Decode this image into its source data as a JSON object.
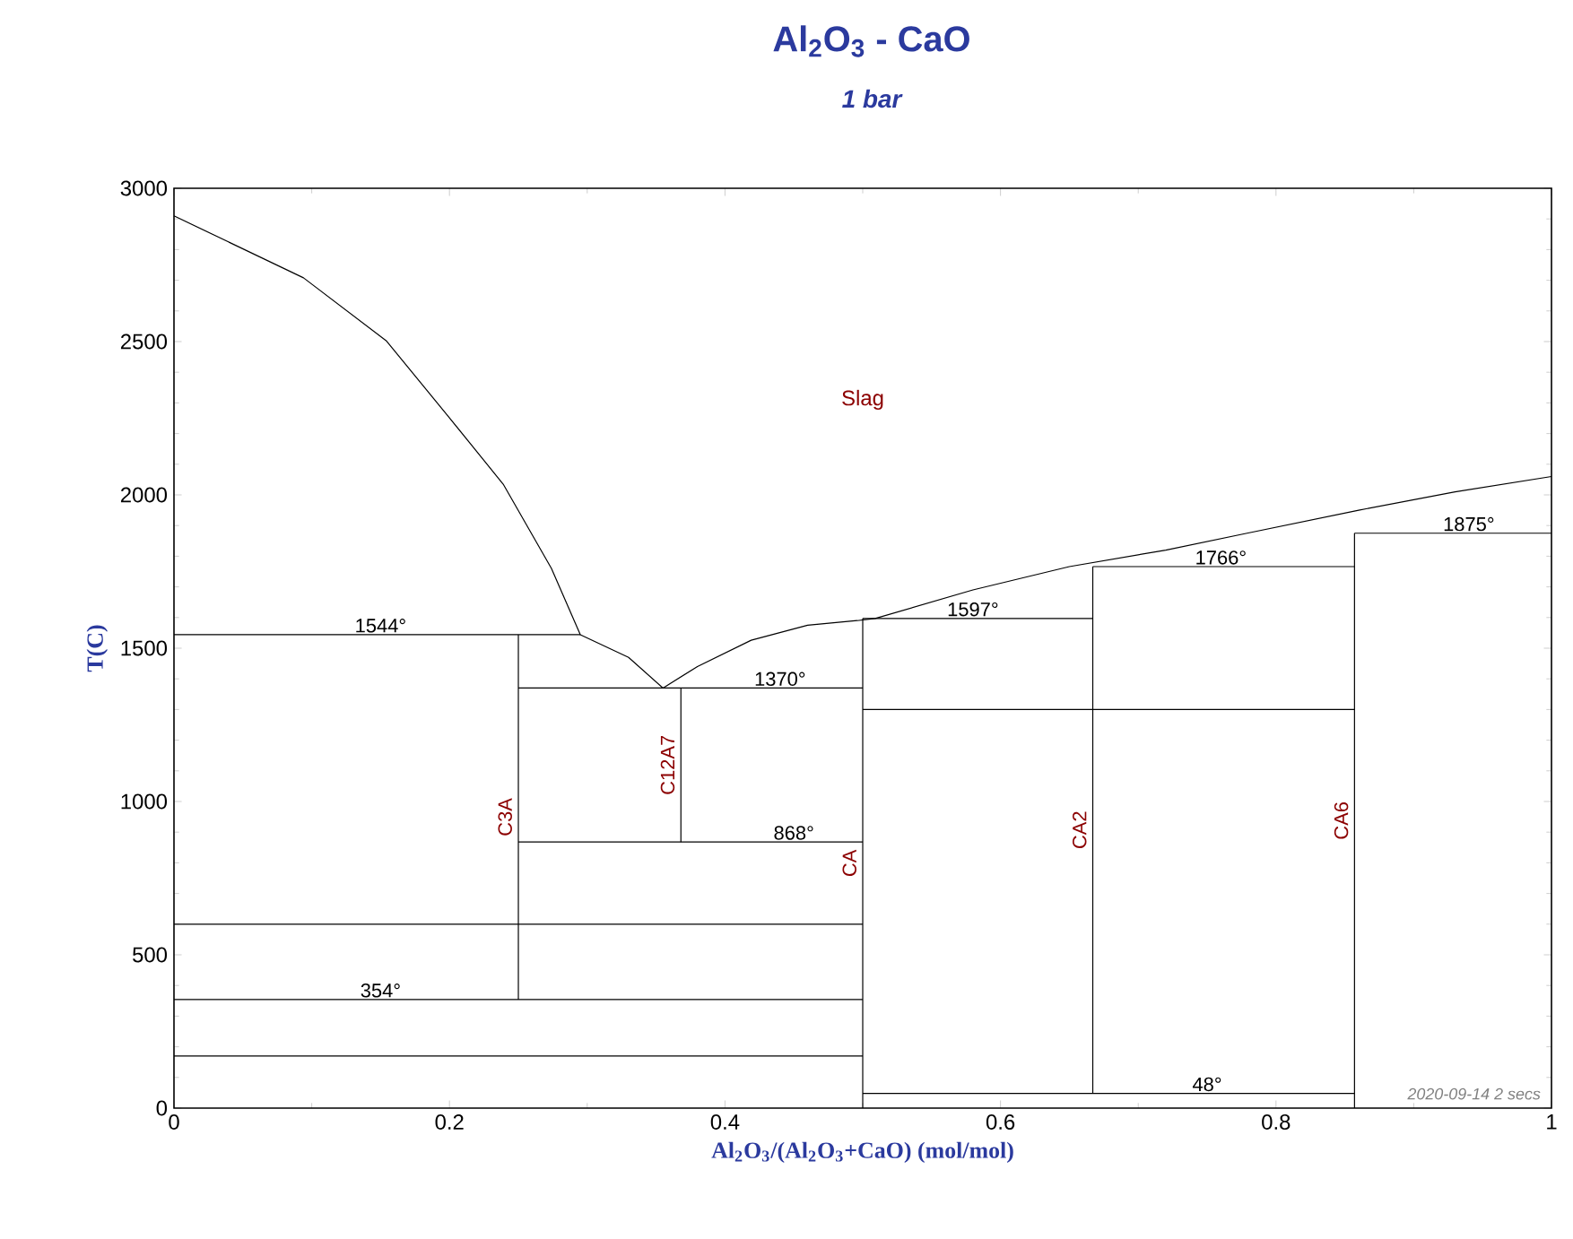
{
  "chart_data": {
    "type": "line",
    "title": "Al$_{2}$O$_{3}$ - CaO",
    "subtitle": "1 bar",
    "xlabel": "Al$_{2}$O$_{3}$/(Al$_{2}$O$_{3}$+CaO) (mol/mol)",
    "ylabel": "T(C)",
    "xlim": [
      0,
      1
    ],
    "ylim": [
      0,
      3000
    ],
    "xticks": [
      {
        "value": 0,
        "label": "0"
      },
      0.2,
      0.4,
      0.6,
      0.8,
      {
        "value": 1,
        "label": "1"
      }
    ],
    "yticks": [
      0,
      500,
      1000,
      1500,
      2000,
      2500,
      3000
    ],
    "series": [
      {
        "color": "#000000",
        "x": [
          0,
          0.094,
          0.154,
          0.2,
          0.239,
          0.274,
          0.295,
          0.33,
          0.355
        ],
        "values": [
          2910,
          2708,
          2503,
          2251,
          2035,
          1760,
          1544,
          1470,
          1370
        ]
      },
      {
        "color": "#000000",
        "x": [
          0.355,
          0.38,
          0.419,
          0.46,
          0.496,
          0.509,
          0.58,
          0.65,
          0.72,
          0.779,
          0.86,
          0.93,
          1
        ],
        "values": [
          1370,
          1440,
          1526,
          1575,
          1590,
          1597,
          1690,
          1766,
          1820,
          1875,
          1950,
          2010,
          2060
        ]
      },
      {
        "color": "#000000",
        "x": [
          0,
          0.295
        ],
        "values": [
          1544,
          1544
        ]
      },
      {
        "color": "#000000",
        "x": [
          0.25,
          0.5
        ],
        "values": [
          1370,
          1370
        ]
      },
      {
        "color": "#000000",
        "x": [
          0.25,
          0.5
        ],
        "values": [
          868,
          868
        ]
      },
      {
        "color": "#000000",
        "x": [
          0,
          0.5
        ],
        "values": [
          600,
          600
        ]
      },
      {
        "color": "#000000",
        "x": [
          0,
          0.5
        ],
        "values": [
          354,
          354
        ]
      },
      {
        "color": "#000000",
        "x": [
          0,
          0.5
        ],
        "values": [
          170,
          170
        ]
      },
      {
        "color": "#000000",
        "x": [
          0.5,
          0.667
        ],
        "values": [
          1597,
          1597
        ]
      },
      {
        "color": "#000000",
        "x": [
          0.5,
          0.857
        ],
        "values": [
          1300,
          1300
        ]
      },
      {
        "color": "#000000",
        "x": [
          0.5,
          0.857
        ],
        "values": [
          48,
          48
        ]
      },
      {
        "color": "#000000",
        "x": [
          0.667,
          0.857
        ],
        "values": [
          1766,
          1766
        ]
      },
      {
        "color": "#000000",
        "x": [
          0.857,
          1
        ],
        "values": [
          1875,
          1875
        ]
      },
      {
        "name": "C3A",
        "color": "#000000",
        "x": [
          0.25,
          0.25
        ],
        "values": [
          1544,
          354
        ]
      },
      {
        "name": "C12A7",
        "color": "#000000",
        "x": [
          0.368,
          0.368
        ],
        "values": [
          1370,
          868
        ]
      },
      {
        "name": "CA",
        "color": "#000000",
        "x": [
          0.5,
          0.5
        ],
        "values": [
          1597,
          0
        ]
      },
      {
        "name": "CA2",
        "color": "#000000",
        "x": [
          0.667,
          0.667
        ],
        "values": [
          1766,
          48
        ]
      },
      {
        "name": "CA6",
        "color": "#000000",
        "x": [
          0.857,
          0.857
        ],
        "values": [
          1875,
          0
        ]
      }
    ],
    "annotations": [
      "Slag",
      {
        "text": "1544°",
        "x": 0.15,
        "y": 1544
      },
      {
        "text": "1370°",
        "x": 0.44,
        "y": 1370
      },
      {
        "text": "868°",
        "x": 0.45,
        "y": 868
      },
      {
        "text": "354°",
        "x": 0.15,
        "y": 354
      },
      {
        "text": "1597°",
        "x": 0.58,
        "y": 1597
      },
      {
        "text": "1766°",
        "x": 0.76,
        "y": 1766
      },
      {
        "text": "1875°",
        "x": 0.94,
        "y": 1875
      },
      {
        "text": "48°",
        "x": 0.75,
        "y": 48
      },
      "2020-09-14  2 secs"
    ]
  }
}
